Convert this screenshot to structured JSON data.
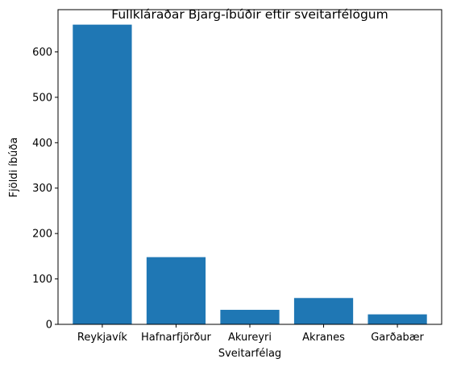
{
  "chart_data": {
    "type": "bar",
    "title": "Fullkláraðar Bjarg-íbúðir eftir sveitarfélögum",
    "xlabel": "Sveitarfélag",
    "ylabel": "Fjöldi íbúða",
    "categories": [
      "Reykjavík",
      "Hafnarfjörður",
      "Akureyri",
      "Akranes",
      "Garðabær"
    ],
    "values": [
      660,
      148,
      32,
      58,
      22
    ],
    "ylim": [
      0,
      693
    ],
    "yticks": [
      0,
      100,
      200,
      300,
      400,
      500,
      600
    ],
    "grid": false,
    "legend": "none",
    "bar_color": "#1f77b4"
  }
}
